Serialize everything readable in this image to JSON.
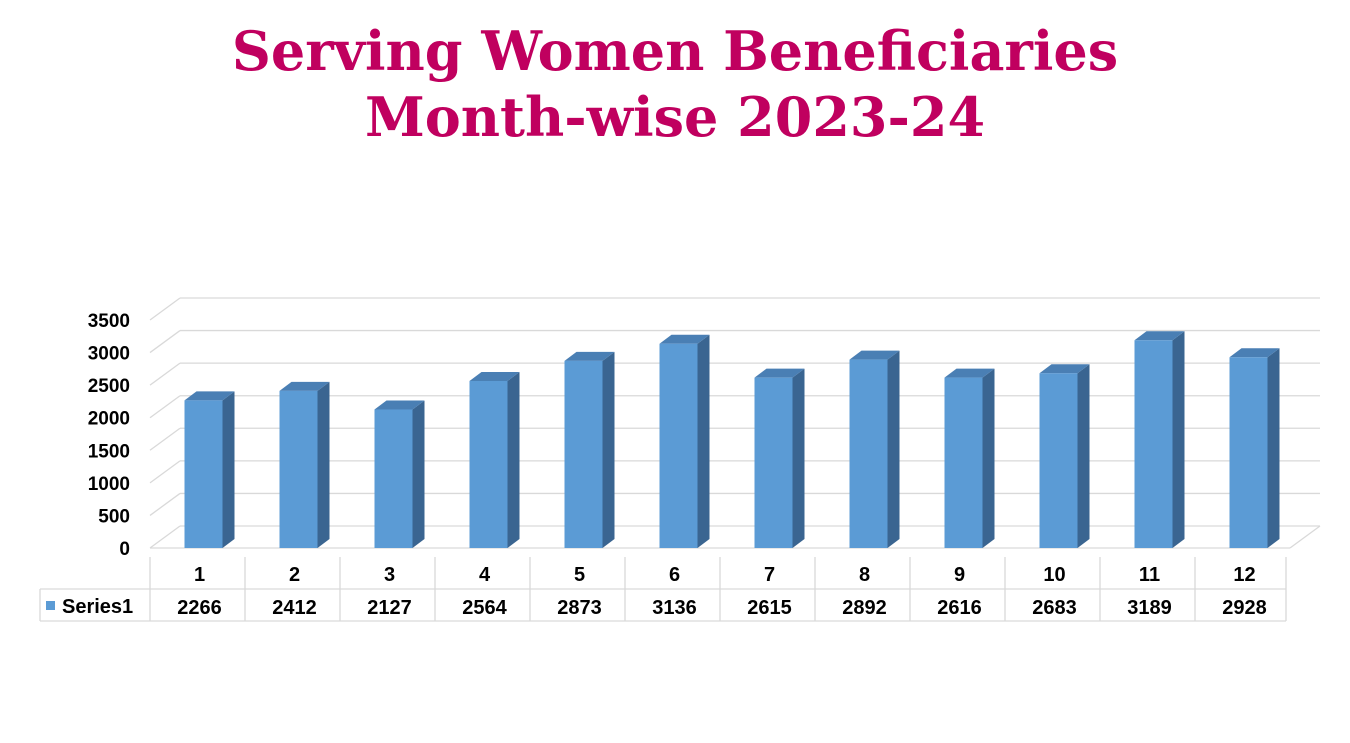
{
  "title_lines": [
    "Serving Women Beneficiaries",
    "Month-wise 2023-24"
  ],
  "colors": {
    "title": "#c0005f",
    "bar_front": "#5b9bd5",
    "bar_side": "#3a6591",
    "bar_top": "#4a7fb4",
    "grid": "#d9d9d9"
  },
  "chart_data": {
    "type": "bar",
    "categories": [
      "1",
      "2",
      "3",
      "4",
      "5",
      "6",
      "7",
      "8",
      "9",
      "10",
      "11",
      "12"
    ],
    "series": [
      {
        "name": "Series1",
        "values": [
          2266,
          2412,
          2127,
          2564,
          2873,
          3136,
          2615,
          2892,
          2616,
          2683,
          3189,
          2928
        ]
      }
    ],
    "y_ticks": [
      0,
      500,
      1000,
      1500,
      2000,
      2500,
      3000,
      3500
    ],
    "ylim": [
      0,
      3500
    ],
    "grid": true,
    "legend": "data-table",
    "style": "3d-column"
  }
}
